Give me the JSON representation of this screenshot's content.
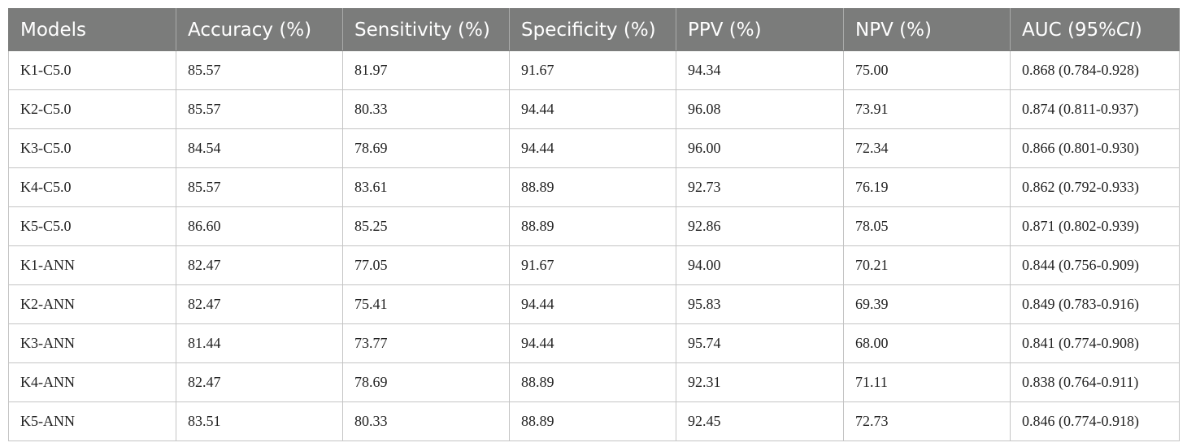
{
  "table": {
    "headers": [
      {
        "label": "Models"
      },
      {
        "label": "Accuracy (%)"
      },
      {
        "label": "Sensitivity (%)"
      },
      {
        "label": "Specificity (%)"
      },
      {
        "label": "PPV (%)"
      },
      {
        "label": "NPV (%)"
      },
      {
        "label_prefix": "AUC (95%",
        "label_italic": "CI",
        "label_suffix": ")"
      }
    ],
    "rows": [
      [
        "K1-C5.0",
        "85.57",
        "81.97",
        "91.67",
        "94.34",
        "75.00",
        "0.868 (0.784-0.928)"
      ],
      [
        "K2-C5.0",
        "85.57",
        "80.33",
        "94.44",
        "96.08",
        "73.91",
        "0.874 (0.811-0.937)"
      ],
      [
        "K3-C5.0",
        "84.54",
        "78.69",
        "94.44",
        "96.00",
        "72.34",
        "0.866 (0.801-0.930)"
      ],
      [
        "K4-C5.0",
        "85.57",
        "83.61",
        "88.89",
        "92.73",
        "76.19",
        "0.862 (0.792-0.933)"
      ],
      [
        "K5-C5.0",
        "86.60",
        "85.25",
        "88.89",
        "92.86",
        "78.05",
        "0.871 (0.802-0.939)"
      ],
      [
        "K1-ANN",
        "82.47",
        "77.05",
        "91.67",
        "94.00",
        "70.21",
        "0.844 (0.756-0.909)"
      ],
      [
        "K2-ANN",
        "82.47",
        "75.41",
        "94.44",
        "95.83",
        "69.39",
        "0.849 (0.783-0.916)"
      ],
      [
        "K3-ANN",
        "81.44",
        "73.77",
        "94.44",
        "95.74",
        "68.00",
        "0.841 (0.774-0.908)"
      ],
      [
        "K4-ANN",
        "82.47",
        "78.69",
        "88.89",
        "92.31",
        "71.11",
        "0.838 (0.764-0.911)"
      ],
      [
        "K5-ANN",
        "83.51",
        "80.33",
        "88.89",
        "92.45",
        "72.73",
        "0.846 (0.774-0.918)"
      ]
    ]
  }
}
